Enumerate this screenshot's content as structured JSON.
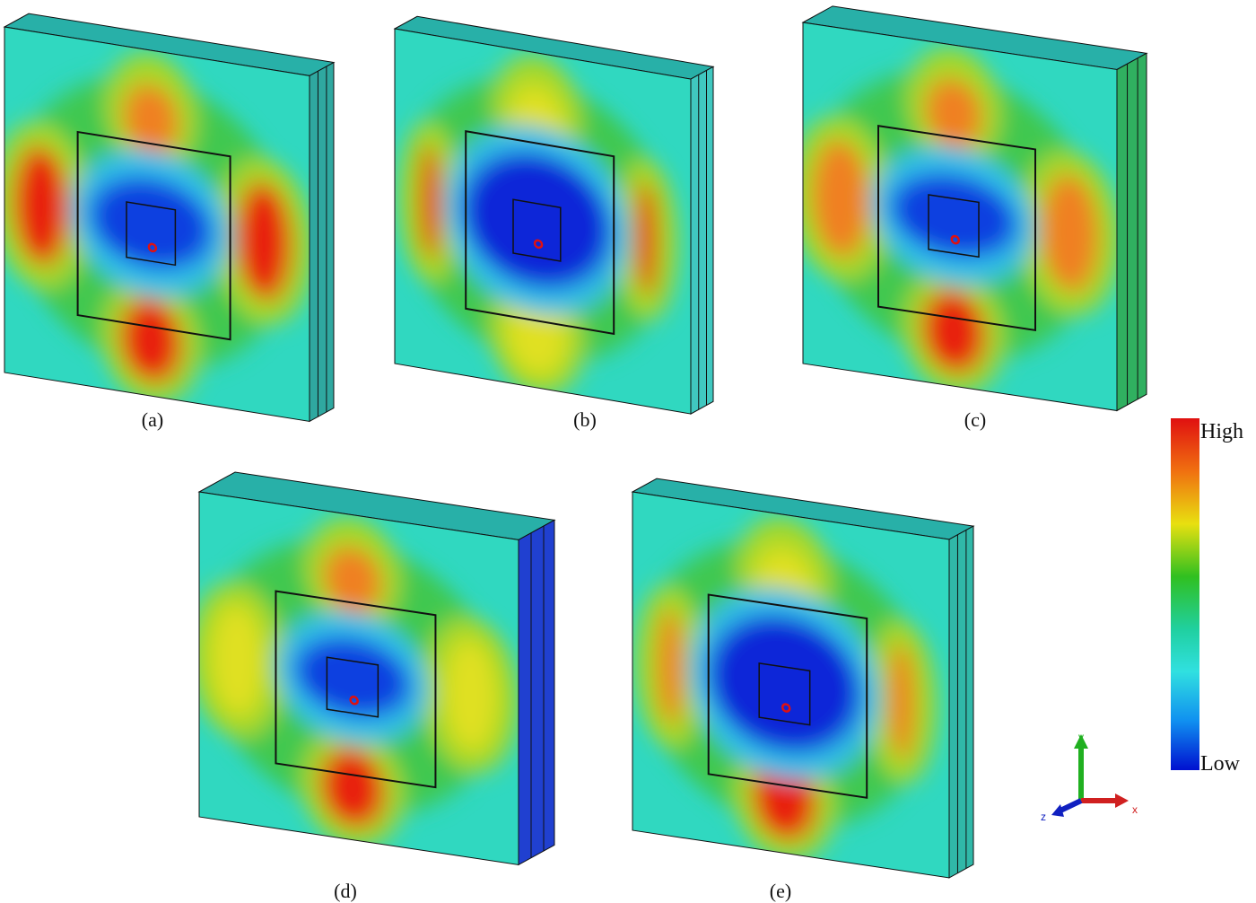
{
  "panels": [
    {
      "label": "(a)"
    },
    {
      "label": "(b)"
    },
    {
      "label": "(c)"
    },
    {
      "label": "(d)"
    },
    {
      "label": "(e)"
    }
  ],
  "colorbar": {
    "high": "High",
    "low": "Low"
  },
  "axes": {
    "x": "x",
    "y": "y",
    "z": "z"
  }
}
